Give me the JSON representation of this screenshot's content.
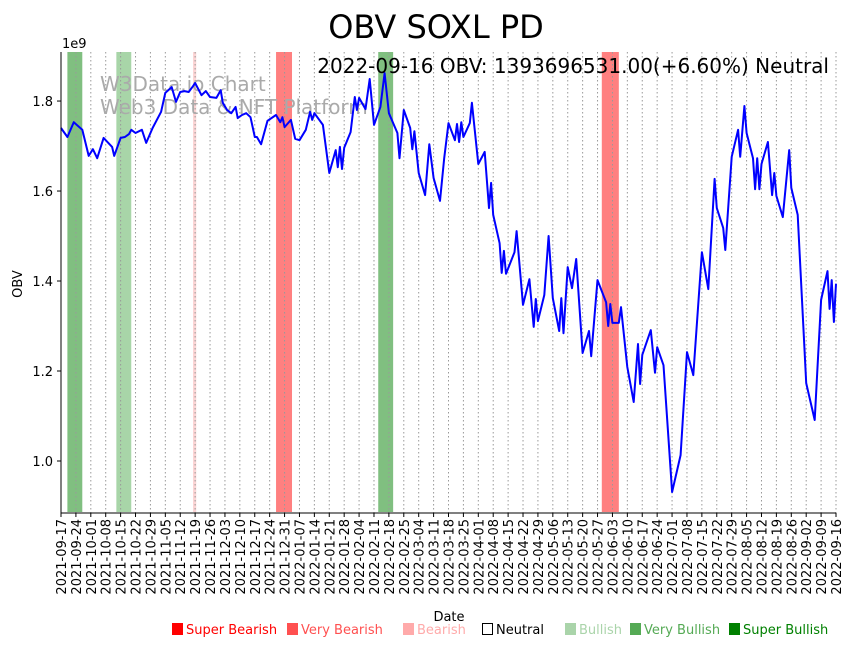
{
  "chart_data": {
    "type": "line",
    "title": "OBV SOXL PD",
    "annotation": "2022-09-16 OBV: 1393696531.00(+6.60%) Neutral",
    "watermark": [
      "W3Data.io Chart",
      "Web3 Data & NFT Platform"
    ],
    "xlabel": "Date",
    "ylabel": "OBV",
    "y_offset_label": "1e9",
    "x_start_date": "2021-09-17",
    "x_range_days": [
      0,
      364
    ],
    "ylim": [
      0.8844,
      1.909
    ],
    "y_ticks": [
      1.0,
      1.2,
      1.4,
      1.6,
      1.8
    ],
    "y_tick_labels": [
      "1.0",
      "1.2",
      "1.4",
      "1.6",
      "1.8"
    ],
    "x_tick_labels": [
      "2021-09-17",
      "2021-09-24",
      "2021-10-01",
      "2021-10-08",
      "2021-10-15",
      "2021-10-22",
      "2021-10-29",
      "2021-11-05",
      "2021-11-12",
      "2021-11-19",
      "2021-11-26",
      "2021-12-03",
      "2021-12-10",
      "2021-12-17",
      "2021-12-24",
      "2021-12-31",
      "2022-01-07",
      "2022-01-14",
      "2022-01-21",
      "2022-01-28",
      "2022-02-04",
      "2022-02-11",
      "2022-02-18",
      "2022-02-25",
      "2022-03-04",
      "2022-03-11",
      "2022-03-18",
      "2022-03-25",
      "2022-04-01",
      "2022-04-08",
      "2022-04-15",
      "2022-04-22",
      "2022-04-29",
      "2022-05-06",
      "2022-05-13",
      "2022-05-20",
      "2022-05-27",
      "2022-06-03",
      "2022-06-10",
      "2022-06-17",
      "2022-06-24",
      "2022-07-01",
      "2022-07-08",
      "2022-07-15",
      "2022-07-22",
      "2022-07-29",
      "2022-08-05",
      "2022-08-12",
      "2022-08-19",
      "2022-08-26",
      "2022-09-02",
      "2022-09-09",
      "2022-09-16"
    ],
    "grid": "vertical-dotted",
    "line_color": "#0000ff",
    "series": [
      {
        "name": "OBV",
        "x_days": [
          0,
          3,
          6,
          10,
          13,
          15,
          17,
          20,
          24,
          25,
          28,
          30,
          32,
          33,
          35,
          38,
          40,
          43,
          47,
          49,
          52,
          54,
          56,
          58,
          60,
          62,
          63,
          66,
          68,
          70,
          73,
          75,
          76,
          78,
          80,
          82,
          83,
          85,
          87,
          89,
          91,
          92,
          94,
          97,
          101,
          103,
          104,
          105,
          108,
          110,
          112,
          115,
          117,
          118,
          119,
          123,
          126,
          129,
          130,
          131,
          132,
          133,
          136,
          138,
          139,
          140,
          143,
          145,
          147,
          150,
          152,
          154,
          158,
          159,
          161,
          164,
          165,
          166,
          168,
          171,
          173,
          175,
          178,
          180,
          182,
          185,
          186,
          187,
          188,
          189,
          192,
          193,
          196,
          199,
          201,
          202,
          203,
          206,
          207,
          208,
          209,
          213,
          214,
          217,
          220,
          222,
          223,
          224,
          227,
          229,
          231,
          234,
          235,
          236,
          238,
          240,
          242,
          245,
          248,
          249,
          252,
          256,
          257,
          258,
          259,
          262,
          263,
          266,
          269,
          271,
          272,
          273,
          277,
          279,
          280,
          283,
          287,
          291,
          294,
          297,
          301,
          304,
          307,
          308,
          311,
          312,
          315,
          318,
          319,
          321,
          322,
          325,
          326,
          327,
          328,
          329,
          332,
          334,
          335,
          336,
          339,
          342,
          343,
          346,
          350,
          354,
          357,
          360,
          361,
          362,
          363,
          364
        ],
        "values": [
          1.74,
          1.72,
          1.753,
          1.736,
          1.678,
          1.693,
          1.673,
          1.718,
          1.698,
          1.678,
          1.718,
          1.72,
          1.727,
          1.736,
          1.729,
          1.736,
          1.707,
          1.74,
          1.776,
          1.818,
          1.831,
          1.798,
          1.82,
          1.822,
          1.82,
          1.833,
          1.84,
          1.813,
          1.822,
          1.809,
          1.807,
          1.824,
          1.796,
          1.78,
          1.773,
          1.787,
          1.762,
          1.769,
          1.773,
          1.764,
          1.72,
          1.72,
          1.704,
          1.756,
          1.769,
          1.753,
          1.764,
          1.742,
          1.758,
          1.716,
          1.713,
          1.736,
          1.776,
          1.758,
          1.773,
          1.747,
          1.64,
          1.691,
          1.653,
          1.698,
          1.649,
          1.696,
          1.731,
          1.809,
          1.78,
          1.807,
          1.782,
          1.849,
          1.747,
          1.787,
          1.862,
          1.773,
          1.729,
          1.673,
          1.78,
          1.74,
          1.693,
          1.733,
          1.64,
          1.591,
          1.704,
          1.629,
          1.578,
          1.673,
          1.751,
          1.713,
          1.749,
          1.709,
          1.753,
          1.72,
          1.751,
          1.796,
          1.66,
          1.687,
          1.562,
          1.618,
          1.547,
          1.484,
          1.418,
          1.467,
          1.416,
          1.464,
          1.511,
          1.347,
          1.404,
          1.298,
          1.36,
          1.311,
          1.369,
          1.5,
          1.362,
          1.289,
          1.362,
          1.284,
          1.431,
          1.384,
          1.449,
          1.24,
          1.289,
          1.233,
          1.402,
          1.353,
          1.3,
          1.349,
          1.307,
          1.307,
          1.342,
          1.209,
          1.131,
          1.26,
          1.171,
          1.236,
          1.291,
          1.196,
          1.253,
          1.213,
          0.931,
          1.013,
          1.242,
          1.191,
          1.464,
          1.382,
          1.627,
          1.562,
          1.518,
          1.469,
          1.676,
          1.736,
          1.676,
          1.789,
          1.729,
          1.673,
          1.604,
          1.673,
          1.604,
          1.66,
          1.709,
          1.591,
          1.64,
          1.589,
          1.542,
          1.691,
          1.607,
          1.547,
          1.173,
          1.091,
          1.358,
          1.422,
          1.338,
          1.402,
          1.309,
          1.394
        ]
      }
    ],
    "signal_bands": [
      {
        "signal": "Very Bullish",
        "start_day": 3,
        "end_day": 10
      },
      {
        "signal": "Bullish",
        "start_day": 26,
        "end_day": 33
      },
      {
        "signal": "Bearish",
        "start_day": 62,
        "end_day": 63.5
      },
      {
        "signal": "Very Bearish",
        "start_day": 101,
        "end_day": 108.5
      },
      {
        "signal": "Very Bullish",
        "start_day": 149,
        "end_day": 156
      },
      {
        "signal": "Very Bearish",
        "start_day": 254,
        "end_day": 262
      }
    ],
    "band_colors": {
      "Super Bearish": "#ff4040",
      "Very Bearish": "#ff8080",
      "Bearish": "#fcd5d5",
      "Bullish": "#a8d5a8",
      "Very Bullish": "#80bf80",
      "Super Bullish": "#3f9f3f"
    },
    "legend": {
      "placement": "bottom",
      "items": [
        {
          "label": "Super Bearish",
          "color": "#ff0000"
        },
        {
          "label": "Very Bearish",
          "color": "#ff5050"
        },
        {
          "label": "Bearish",
          "color": "#ffaaaa"
        },
        {
          "label": "Neutral",
          "color": "#000000"
        },
        {
          "label": "Bullish",
          "color": "#aad4aa"
        },
        {
          "label": "Very Bullish",
          "color": "#55aa55"
        },
        {
          "label": "Super Bullish",
          "color": "#008000"
        }
      ]
    }
  }
}
